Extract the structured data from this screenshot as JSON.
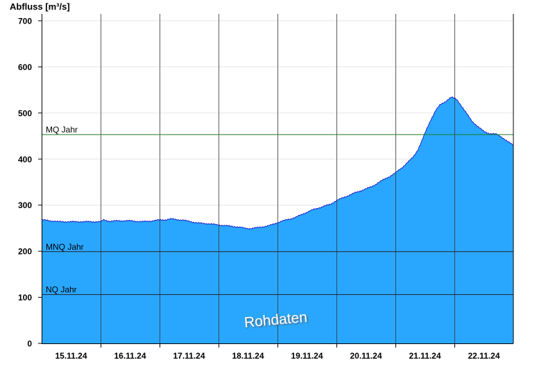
{
  "chart_data": {
    "type": "area",
    "ylabel": "Abfluss [m³/s]",
    "ylim": [
      0,
      715
    ],
    "y_ticks": [
      0,
      100,
      200,
      300,
      400,
      500,
      600,
      700
    ],
    "x_tick_labels": [
      "15.11.24",
      "16.11.24",
      "17.11.24",
      "18.11.24",
      "19.11.24",
      "20.11.24",
      "21.11.24",
      "22.11.24"
    ],
    "xlim_days": [
      0,
      8
    ],
    "fill_color": "#29a7ff",
    "line_color": "#1c24c8",
    "grid": "horizontal light gray",
    "series": [
      {
        "name": "",
        "points": [
          [
            0.0,
            268
          ],
          [
            0.15,
            266
          ],
          [
            0.3,
            264
          ],
          [
            0.5,
            264
          ],
          [
            0.8,
            264
          ],
          [
            1.0,
            264
          ],
          [
            1.05,
            268
          ],
          [
            1.15,
            265
          ],
          [
            1.3,
            266
          ],
          [
            1.5,
            266
          ],
          [
            1.7,
            264
          ],
          [
            1.9,
            266
          ],
          [
            2.0,
            268
          ],
          [
            2.1,
            268
          ],
          [
            2.2,
            270
          ],
          [
            2.35,
            268
          ],
          [
            2.5,
            265
          ],
          [
            2.65,
            261
          ],
          [
            2.8,
            260
          ],
          [
            3.0,
            257
          ],
          [
            3.15,
            255
          ],
          [
            3.3,
            253
          ],
          [
            3.45,
            250
          ],
          [
            3.55,
            249
          ],
          [
            3.7,
            252
          ],
          [
            3.85,
            255
          ],
          [
            4.0,
            262
          ],
          [
            4.15,
            268
          ],
          [
            4.3,
            273
          ],
          [
            4.45,
            282
          ],
          [
            4.6,
            290
          ],
          [
            4.75,
            296
          ],
          [
            4.9,
            302
          ],
          [
            5.0,
            310
          ],
          [
            5.15,
            318
          ],
          [
            5.3,
            326
          ],
          [
            5.45,
            333
          ],
          [
            5.6,
            340
          ],
          [
            5.75,
            352
          ],
          [
            5.9,
            362
          ],
          [
            6.0,
            370
          ],
          [
            6.1,
            380
          ],
          [
            6.2,
            392
          ],
          [
            6.3,
            404
          ],
          [
            6.38,
            420
          ],
          [
            6.45,
            440
          ],
          [
            6.52,
            462
          ],
          [
            6.6,
            485
          ],
          [
            6.68,
            505
          ],
          [
            6.76,
            518
          ],
          [
            6.84,
            524
          ],
          [
            6.9,
            530
          ],
          [
            6.95,
            534
          ],
          [
            7.0,
            532
          ],
          [
            7.05,
            528
          ],
          [
            7.12,
            515
          ],
          [
            7.2,
            500
          ],
          [
            7.3,
            482
          ],
          [
            7.4,
            470
          ],
          [
            7.5,
            460
          ],
          [
            7.6,
            455
          ],
          [
            7.7,
            454
          ],
          [
            7.75,
            452
          ],
          [
            7.82,
            446
          ],
          [
            7.9,
            438
          ],
          [
            8.0,
            430
          ]
        ]
      }
    ],
    "reference_lines": [
      {
        "label": "MQ Jahr",
        "value": 453,
        "color": "#1a7a1a"
      },
      {
        "label": "MNQ Jahr",
        "value": 199,
        "color": "#222222"
      },
      {
        "label": "NQ Jahr",
        "value": 106,
        "color": "#222222"
      }
    ],
    "annotations": [
      "Rohdaten"
    ]
  }
}
